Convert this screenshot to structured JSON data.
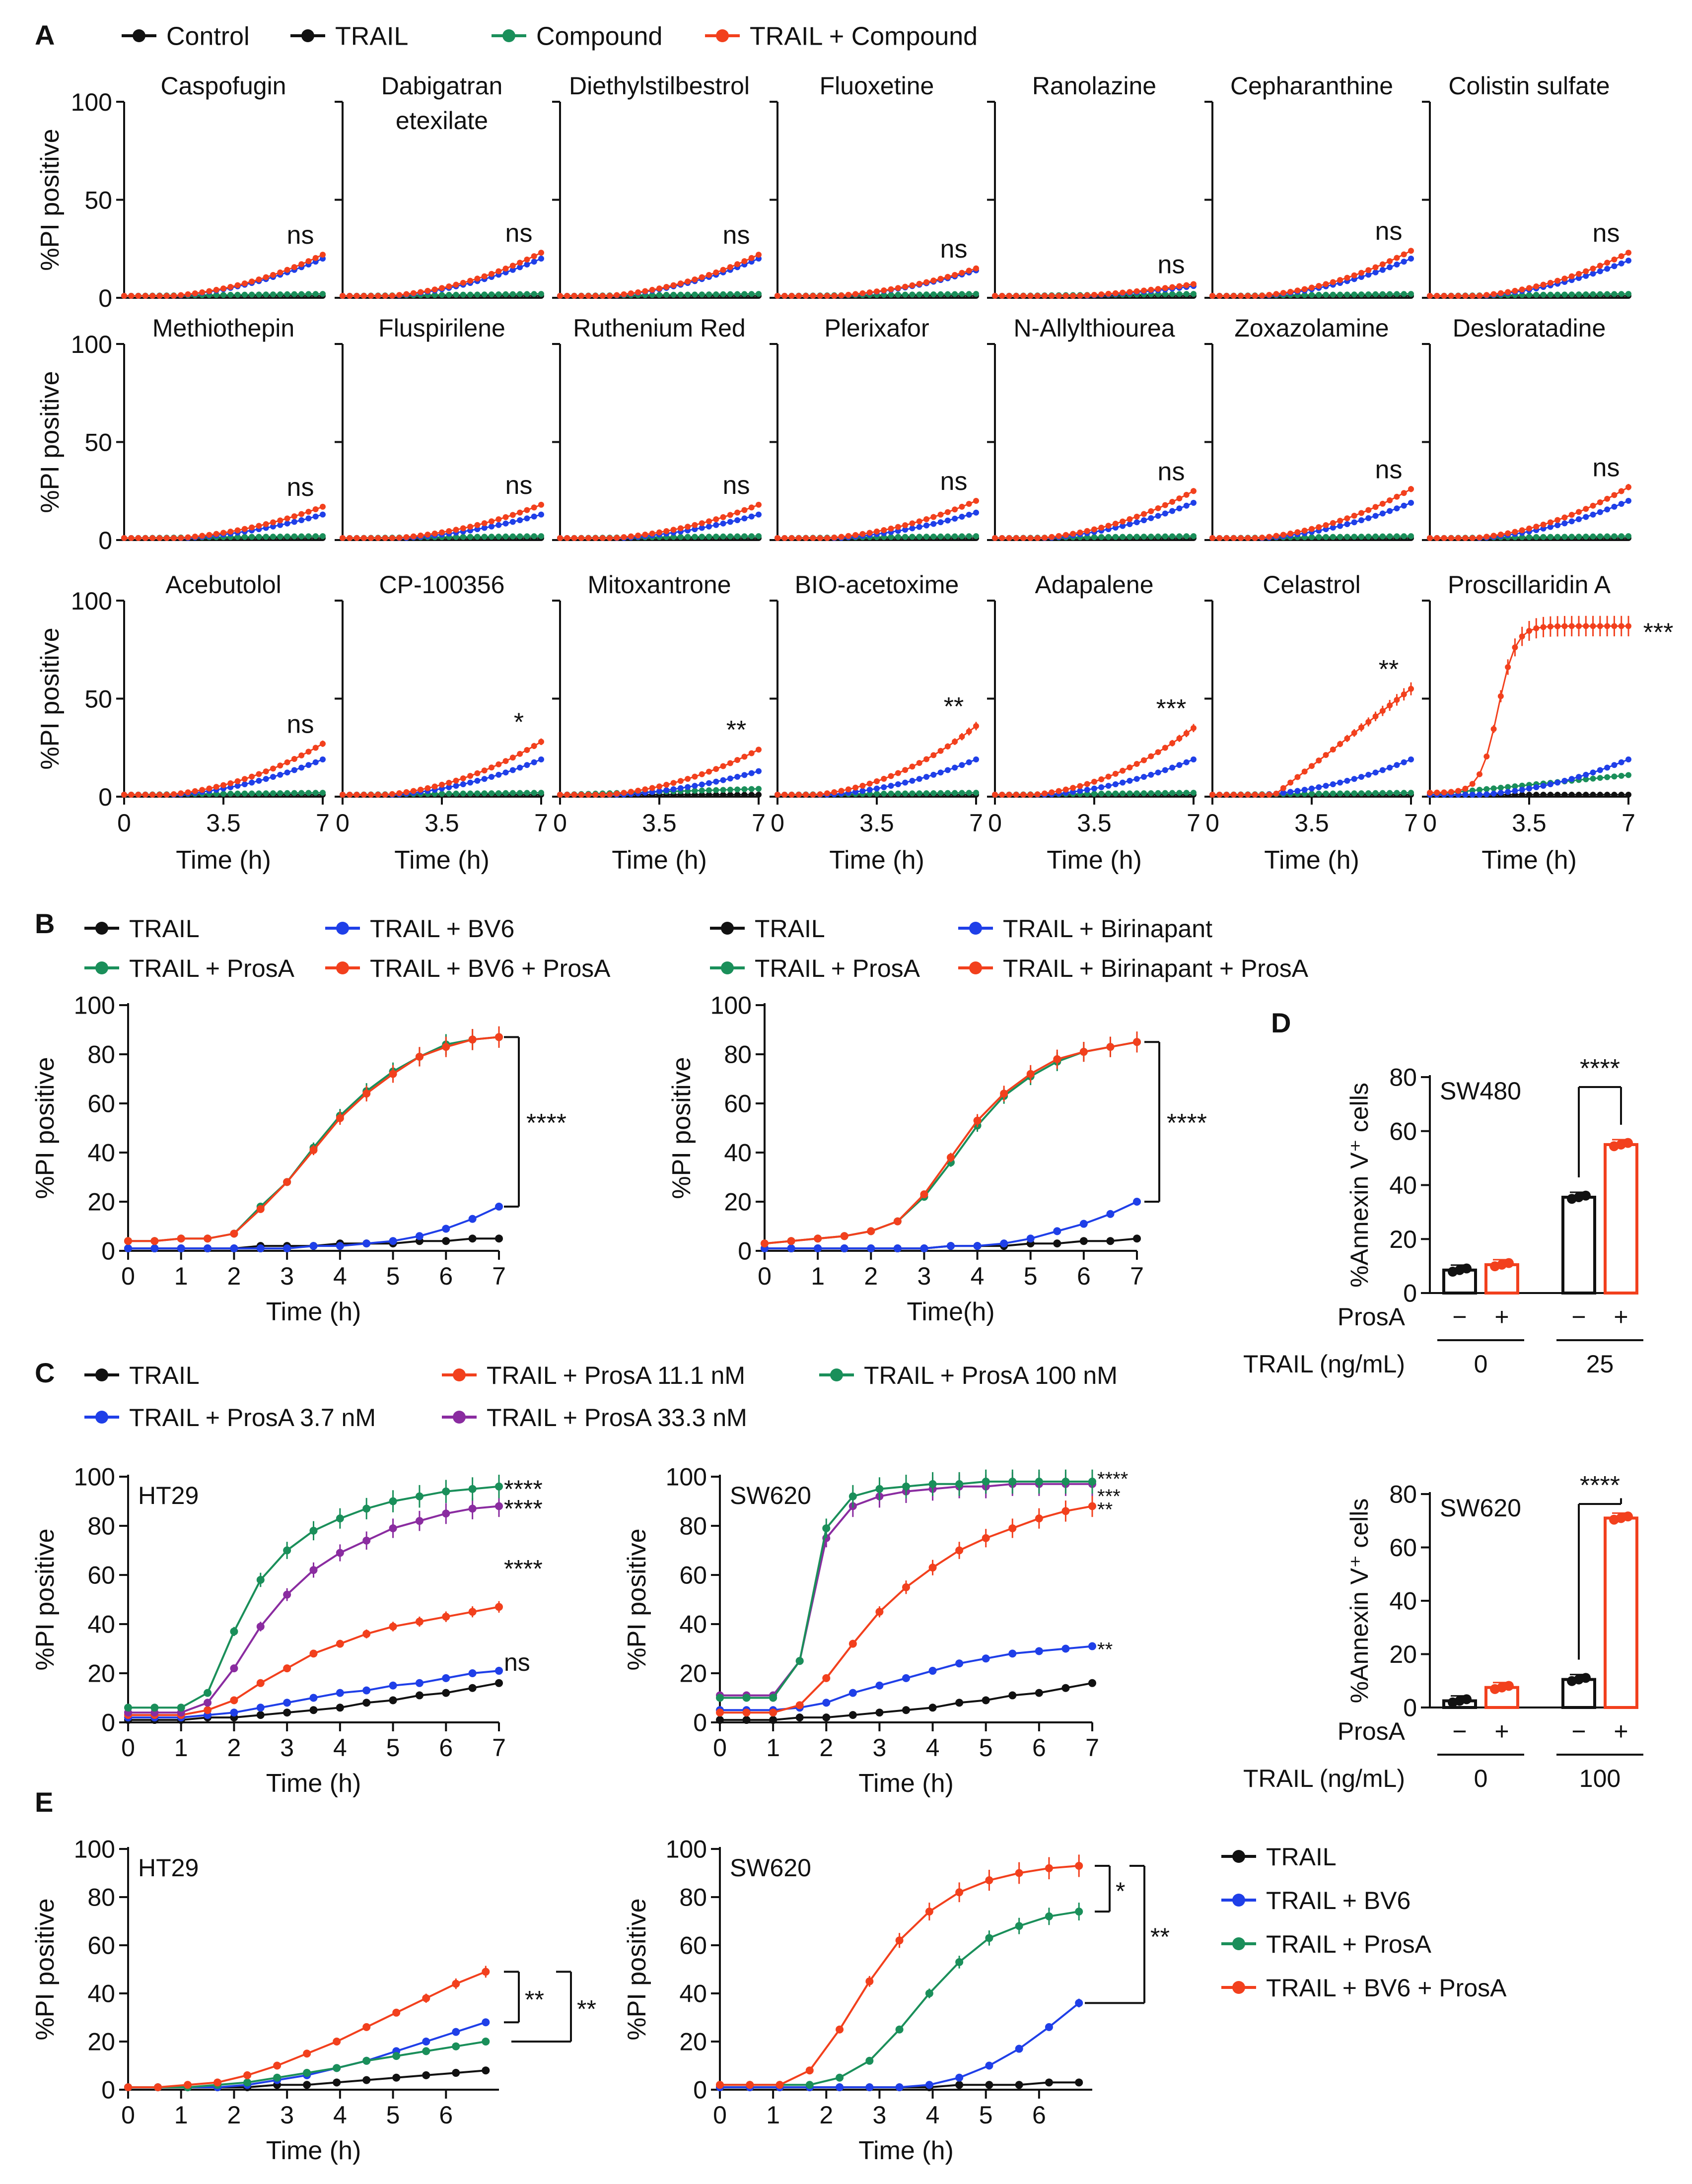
{
  "colors": {
    "black": "#111111",
    "blue": "#1f3fe8",
    "green": "#1a8f5a",
    "red": "#f2401d",
    "purple": "#8a2ca0"
  },
  "panels": {
    "A": "A",
    "B": "B",
    "C": "C",
    "D": "D",
    "E": "E"
  },
  "legends": {
    "A": [
      "Control",
      "TRAIL",
      "Compound",
      "TRAIL + Compound"
    ],
    "B1": [
      "TRAIL",
      "TRAIL + BV6",
      "TRAIL + ProsA",
      "TRAIL + BV6 + ProsA"
    ],
    "B2": [
      "TRAIL",
      "TRAIL + Birinapant",
      "TRAIL + ProsA",
      "TRAIL + Birinapant + ProsA"
    ],
    "C": [
      "TRAIL",
      "TRAIL + ProsA 11.1 nM",
      "TRAIL + ProsA 100 nM",
      "TRAIL + ProsA 3.7 nM",
      "TRAIL + ProsA 33.3 nM"
    ],
    "E": [
      "TRAIL",
      "TRAIL + BV6",
      "TRAIL + ProsA",
      "TRAIL + BV6 + ProsA"
    ]
  },
  "chart_data": [
    {
      "panel": "A",
      "type": "line",
      "ylabel": "%PI positive",
      "xlabel": "Time (h)",
      "xticks": [
        "0",
        "3.5",
        "7"
      ],
      "yticks": [
        "0",
        "50",
        "100"
      ],
      "ylim": [
        0,
        100
      ],
      "xlim": [
        0,
        7
      ],
      "series_names": [
        "Control",
        "TRAIL",
        "Compound",
        "TRAIL + Compound"
      ],
      "subplots": [
        {
          "title": "Caspofugin",
          "sig": "ns",
          "trail_end": 20,
          "combo_end": 22,
          "compound_end": 2
        },
        {
          "title": "Dabigatran etexilate",
          "sig": "ns",
          "trail_end": 20,
          "combo_end": 23,
          "compound_end": 2
        },
        {
          "title": "Diethylstilbestrol",
          "sig": "ns",
          "trail_end": 20,
          "combo_end": 22,
          "compound_end": 2
        },
        {
          "title": "Fluoxetine",
          "sig": "ns",
          "trail_end": 14,
          "combo_end": 15,
          "compound_end": 2
        },
        {
          "title": "Ranolazine",
          "sig": "ns",
          "trail_end": 6,
          "combo_end": 7,
          "compound_end": 2
        },
        {
          "title": "Cepharanthine",
          "sig": "ns",
          "trail_end": 20,
          "combo_end": 24,
          "compound_end": 2
        },
        {
          "title": "Colistin sulfate",
          "sig": "ns",
          "trail_end": 19,
          "combo_end": 23,
          "compound_end": 2
        },
        {
          "title": "Methiothepin",
          "sig": "ns",
          "trail_end": 13,
          "combo_end": 17,
          "compound_end": 2
        },
        {
          "title": "Fluspirilene",
          "sig": "ns",
          "trail_end": 13,
          "combo_end": 18,
          "compound_end": 2
        },
        {
          "title": "Ruthenium Red",
          "sig": "ns",
          "trail_end": 13,
          "combo_end": 18,
          "compound_end": 2
        },
        {
          "title": "Plerixafor",
          "sig": "ns",
          "trail_end": 14,
          "combo_end": 20,
          "compound_end": 2
        },
        {
          "title": "N-Allylthiourea",
          "sig": "ns",
          "trail_end": 19,
          "combo_end": 25,
          "compound_end": 2
        },
        {
          "title": "Zoxazolamine",
          "sig": "ns",
          "trail_end": 19,
          "combo_end": 26,
          "compound_end": 2
        },
        {
          "title": "Desloratadine",
          "sig": "ns",
          "trail_end": 20,
          "combo_end": 27,
          "compound_end": 2
        },
        {
          "title": "Acebutolol",
          "sig": "ns",
          "trail_end": 19,
          "combo_end": 27,
          "compound_end": 2
        },
        {
          "title": "CP-100356",
          "sig": "*",
          "trail_end": 19,
          "combo_end": 28,
          "compound_end": 2
        },
        {
          "title": "Mitoxantrone",
          "sig": "**",
          "trail_end": 13,
          "combo_end": 24,
          "compound_end": 4
        },
        {
          "title": "BIO-acetoxime",
          "sig": "**",
          "trail_end": 19,
          "combo_end": 36,
          "compound_end": 2
        },
        {
          "title": "Adapalene",
          "sig": "***",
          "trail_end": 19,
          "combo_end": 35,
          "compound_end": 2
        },
        {
          "title": "Celastrol",
          "sig": "**",
          "trail_end": 19,
          "combo_end": 55,
          "compound_end": 2
        },
        {
          "title": "Proscillaridin A",
          "sig": "***",
          "trail_end": 19,
          "combo_end": 87,
          "compound_end": 11
        }
      ]
    },
    {
      "panel": "B",
      "type": "line",
      "ylabel": "%PI positive",
      "xlabel": "Time (h)",
      "xticks": [
        "0",
        "1",
        "2",
        "3",
        "4",
        "5",
        "6",
        "7"
      ],
      "yticks": [
        "0",
        "20",
        "40",
        "60",
        "80",
        "100"
      ],
      "sig": "****",
      "series": [
        {
          "name": "TRAIL",
          "values": [
            1,
            1,
            1,
            1,
            1,
            2,
            2,
            2,
            3,
            3,
            3,
            4,
            4,
            5,
            5
          ]
        },
        {
          "name": "TRAIL + BV6",
          "values": [
            1,
            1,
            1,
            1,
            1,
            1,
            1,
            2,
            2,
            3,
            4,
            6,
            9,
            13,
            18
          ]
        },
        {
          "name": "TRAIL + ProsA",
          "values": [
            4,
            4,
            5,
            5,
            7,
            18,
            28,
            42,
            55,
            65,
            73,
            79,
            84,
            86,
            87
          ]
        },
        {
          "name": "TRAIL + BV6 + ProsA",
          "values": [
            4,
            4,
            5,
            5,
            7,
            17,
            28,
            41,
            54,
            64,
            72,
            79,
            83,
            86,
            87
          ]
        }
      ]
    },
    {
      "panel": "B2",
      "type": "line",
      "ylabel": "%PI positive",
      "xlabel": "Time(h)",
      "xticks": [
        "0",
        "1",
        "2",
        "3",
        "4",
        "5",
        "6",
        "7"
      ],
      "yticks": [
        "0",
        "20",
        "40",
        "60",
        "80",
        "100"
      ],
      "sig": "****",
      "series": [
        {
          "name": "TRAIL",
          "values": [
            1,
            1,
            1,
            1,
            1,
            1,
            1,
            2,
            2,
            2,
            3,
            3,
            4,
            4,
            5
          ]
        },
        {
          "name": "TRAIL + Birinapant",
          "values": [
            1,
            1,
            1,
            1,
            1,
            1,
            1,
            2,
            2,
            3,
            5,
            8,
            11,
            15,
            20
          ]
        },
        {
          "name": "TRAIL + ProsA",
          "values": [
            3,
            4,
            5,
            6,
            8,
            12,
            22,
            36,
            51,
            63,
            71,
            77,
            81,
            83,
            85
          ]
        },
        {
          "name": "TRAIL + Birinapant + ProsA",
          "values": [
            3,
            4,
            5,
            6,
            8,
            12,
            23,
            38,
            53,
            64,
            72,
            78,
            81,
            83,
            85
          ]
        }
      ]
    },
    {
      "panel": "C",
      "type": "line",
      "subtitle": "HT29",
      "ylabel": "%PI positive",
      "xlabel": "Time (h)",
      "xticks": [
        "0",
        "1",
        "2",
        "3",
        "4",
        "5",
        "6",
        "7"
      ],
      "yticks": [
        "0",
        "20",
        "40",
        "60",
        "80",
        "100"
      ],
      "series": [
        {
          "name": "TRAIL",
          "values": [
            1,
            1,
            1,
            2,
            2,
            3,
            4,
            5,
            6,
            8,
            9,
            11,
            12,
            14,
            16
          ],
          "sig": ""
        },
        {
          "name": "TRAIL + ProsA 3.7 nM",
          "values": [
            2,
            2,
            2,
            3,
            4,
            6,
            8,
            10,
            12,
            13,
            15,
            16,
            18,
            20,
            21
          ],
          "sig": "ns"
        },
        {
          "name": "TRAIL + ProsA 11.1 nM",
          "values": [
            3,
            3,
            3,
            5,
            9,
            16,
            22,
            28,
            32,
            36,
            39,
            41,
            43,
            45,
            47
          ],
          "sig": "****"
        },
        {
          "name": "TRAIL + ProsA 33.3 nM",
          "values": [
            4,
            4,
            4,
            8,
            22,
            39,
            52,
            62,
            69,
            74,
            79,
            82,
            85,
            87,
            88
          ],
          "sig": "****"
        },
        {
          "name": "TRAIL + ProsA 100 nM",
          "values": [
            6,
            6,
            6,
            12,
            37,
            58,
            70,
            78,
            83,
            87,
            90,
            92,
            94,
            95,
            96
          ],
          "sig": "****"
        }
      ]
    },
    {
      "panel": "C2",
      "type": "line",
      "subtitle": "SW620",
      "ylabel": "%PI positive",
      "xlabel": "Time (h)",
      "xticks": [
        "0",
        "1",
        "2",
        "3",
        "4",
        "5",
        "6",
        "7"
      ],
      "yticks": [
        "0",
        "20",
        "40",
        "60",
        "80",
        "100"
      ],
      "series": [
        {
          "name": "TRAIL",
          "values": [
            1,
            1,
            1,
            2,
            2,
            3,
            4,
            5,
            6,
            8,
            9,
            11,
            12,
            14,
            16
          ],
          "sig": ""
        },
        {
          "name": "TRAIL + ProsA 3.7 nM",
          "values": [
            5,
            5,
            5,
            6,
            8,
            12,
            15,
            18,
            21,
            24,
            26,
            28,
            29,
            30,
            31
          ],
          "sig": "**"
        },
        {
          "name": "TRAIL + ProsA 11.1 nM",
          "values": [
            4,
            4,
            4,
            7,
            18,
            32,
            45,
            55,
            63,
            70,
            75,
            79,
            83,
            86,
            88
          ],
          "sig": "**"
        },
        {
          "name": "TRAIL + ProsA 33.3 nM",
          "values": [
            11,
            11,
            11,
            25,
            75,
            88,
            92,
            94,
            95,
            96,
            96,
            97,
            97,
            97,
            97
          ],
          "sig": "***"
        },
        {
          "name": "TRAIL + ProsA 100 nM",
          "values": [
            10,
            10,
            10,
            25,
            79,
            92,
            95,
            96,
            97,
            97,
            98,
            98,
            98,
            98,
            98
          ],
          "sig": "****"
        }
      ]
    },
    {
      "panel": "D",
      "type": "bar",
      "subtitle": "SW480",
      "ylabel": "%Annexin V⁺ cells",
      "yticks": [
        "0",
        "20",
        "40",
        "60",
        "80"
      ],
      "ylim": [
        0,
        80
      ],
      "prosa_label": "ProsA",
      "trail_label": "TRAIL (ng/mL)",
      "prosa_marks": [
        "−",
        "+",
        "−",
        "+"
      ],
      "trail_doses": [
        "0",
        "25"
      ],
      "values": [
        8.5,
        10.5,
        35.5,
        55
      ],
      "sig": "****"
    },
    {
      "panel": "D2",
      "type": "bar",
      "subtitle": "SW620",
      "ylabel": "%Annexin V⁺ cells",
      "yticks": [
        "0",
        "20",
        "40",
        "60",
        "80"
      ],
      "ylim": [
        0,
        80
      ],
      "prosa_label": "ProsA",
      "trail_label": "TRAIL (ng/mL)",
      "prosa_marks": [
        "−",
        "+",
        "−",
        "+"
      ],
      "trail_doses": [
        "0",
        "100"
      ],
      "values": [
        2.5,
        7.5,
        10.5,
        71
      ],
      "sig": "****"
    },
    {
      "panel": "E",
      "type": "line",
      "subtitle": "HT29",
      "ylabel": "%PI positive",
      "xlabel": "Time (h)",
      "xticks": [
        "0",
        "1",
        "2",
        "3",
        "4",
        "5",
        "6"
      ],
      "yticks": [
        "0",
        "20",
        "40",
        "60",
        "80",
        "100"
      ],
      "sig_inner": "**",
      "sig_outer": "**",
      "series": [
        {
          "name": "TRAIL",
          "values": [
            1,
            1,
            1,
            1,
            1,
            2,
            2,
            3,
            4,
            5,
            6,
            7,
            8
          ]
        },
        {
          "name": "TRAIL + BV6",
          "values": [
            1,
            1,
            1,
            1,
            2,
            4,
            6,
            9,
            12,
            16,
            20,
            24,
            28
          ]
        },
        {
          "name": "TRAIL + ProsA",
          "values": [
            1,
            1,
            1,
            2,
            3,
            5,
            7,
            9,
            12,
            14,
            16,
            18,
            20
          ]
        },
        {
          "name": "TRAIL + BV6 + ProsA",
          "values": [
            1,
            1,
            2,
            3,
            6,
            10,
            15,
            20,
            26,
            32,
            38,
            44,
            49
          ]
        }
      ]
    },
    {
      "panel": "E2",
      "type": "line",
      "subtitle": "SW620",
      "ylabel": "%PI positive",
      "xlabel": "Time (h)",
      "xticks": [
        "0",
        "1",
        "2",
        "3",
        "4",
        "5",
        "6"
      ],
      "yticks": [
        "0",
        "20",
        "40",
        "60",
        "80",
        "100"
      ],
      "sig_inner": "*",
      "sig_outer": "**",
      "series": [
        {
          "name": "TRAIL",
          "values": [
            1,
            1,
            1,
            1,
            1,
            1,
            1,
            1,
            2,
            2,
            2,
            3,
            3
          ]
        },
        {
          "name": "TRAIL + BV6",
          "values": [
            1,
            1,
            1,
            1,
            1,
            1,
            1,
            2,
            5,
            10,
            17,
            26,
            36
          ]
        },
        {
          "name": "TRAIL + ProsA",
          "values": [
            2,
            2,
            2,
            2,
            5,
            12,
            25,
            40,
            53,
            63,
            68,
            72,
            74
          ]
        },
        {
          "name": "TRAIL + BV6 + ProsA",
          "values": [
            2,
            2,
            2,
            8,
            25,
            45,
            62,
            74,
            82,
            87,
            90,
            92,
            93
          ]
        }
      ]
    }
  ]
}
